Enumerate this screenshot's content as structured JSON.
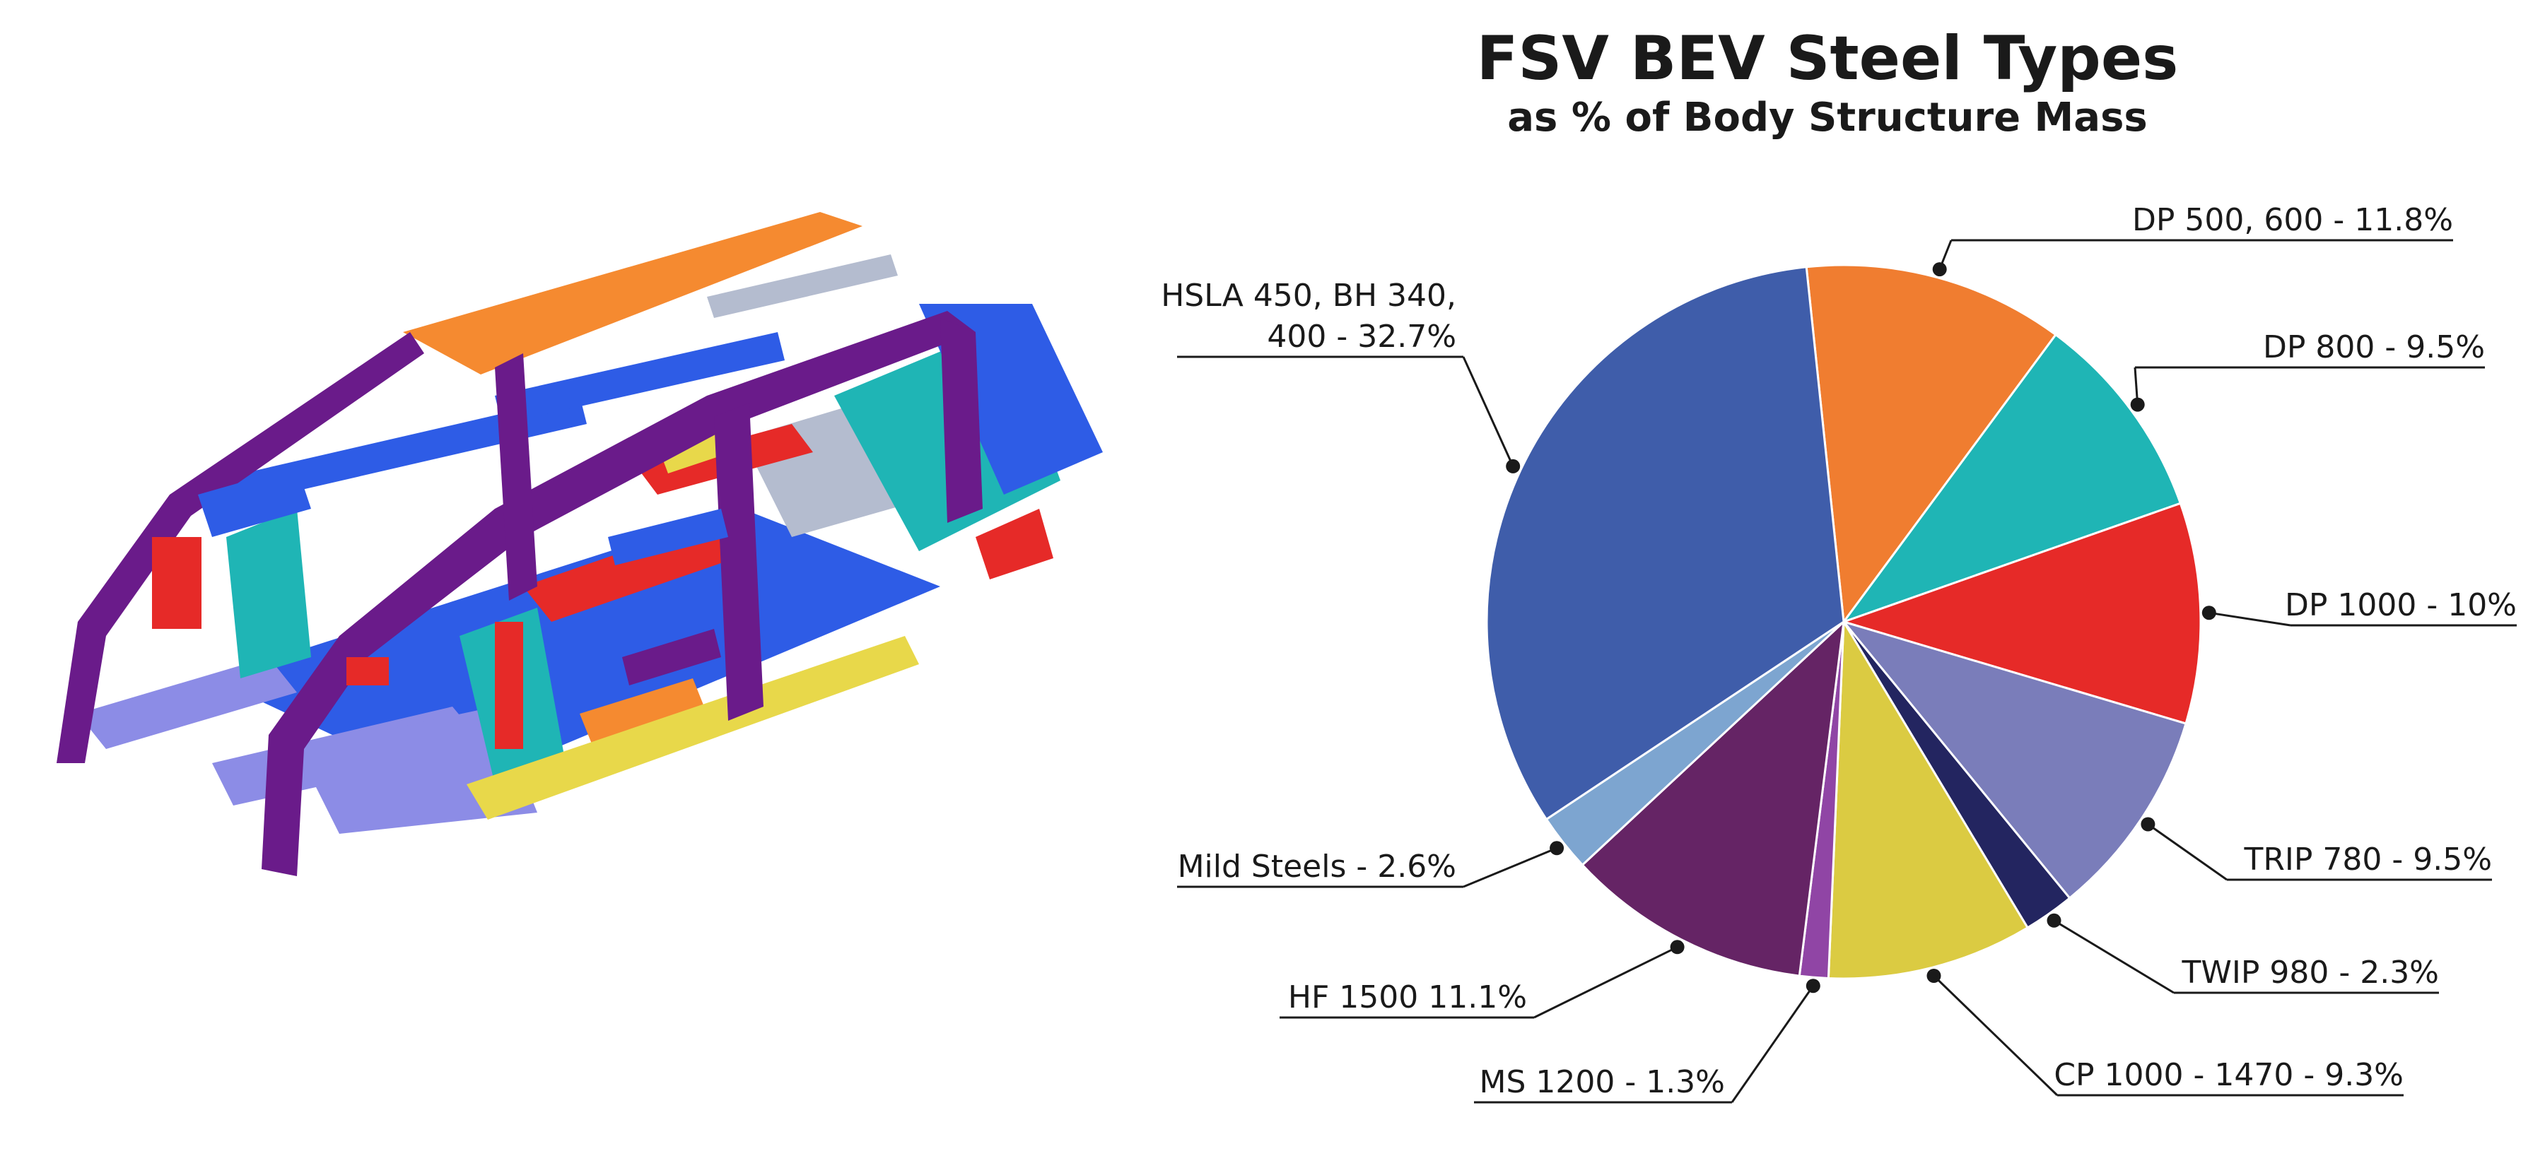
{
  "chart_data": {
    "type": "pie",
    "title": "FSV BEV Steel Types",
    "subtitle": "as % of Body Structure Mass",
    "slices": [
      {
        "label_lines": [
          "DP 500, 600 - 11.8%"
        ],
        "value": 11.8,
        "color": "#F07D30"
      },
      {
        "label_lines": [
          "DP 800 - 9.5%"
        ],
        "value": 9.5,
        "color": "#1FB5B5"
      },
      {
        "label_lines": [
          "DP 1000 - 10%"
        ],
        "value": 10.0,
        "color": "#E62A28"
      },
      {
        "label_lines": [
          "TRIP 780 - 9.5%"
        ],
        "value": 9.5,
        "color": "#7A7DBA"
      },
      {
        "label_lines": [
          "TWIP 980 - 2.3%"
        ],
        "value": 2.3,
        "color": "#232560"
      },
      {
        "label_lines": [
          "CP 1000 - 1470 - 9.3%"
        ],
        "value": 9.3,
        "color": "#DBCB42"
      },
      {
        "label_lines": [
          "MS 1200 - 1.3%"
        ],
        "value": 1.3,
        "color": "#9045A5"
      },
      {
        "label_lines": [
          "HF 1500  11.1%"
        ],
        "value": 11.1,
        "color": "#652465"
      },
      {
        "label_lines": [
          "Mild Steels - 2.6%"
        ],
        "value": 2.6,
        "color": "#7DA5D0"
      },
      {
        "label_lines": [
          "HSLA 450, BH 340,",
          "400 - 32.7%"
        ],
        "value": 32.7,
        "color": "#3F5DAA"
      }
    ]
  },
  "illustration": {
    "icon": "car-body-structure-icon",
    "colors": {
      "roof": "#F58A30",
      "pillars": "#6A1B8A",
      "floor": "#2E5CE6",
      "teal_parts": "#1FB5B5",
      "red_parts": "#E62A28",
      "sill": "#E8D84A",
      "lower_rails": "#8C8CE6",
      "panel_grey": "#B4BCCF"
    }
  }
}
